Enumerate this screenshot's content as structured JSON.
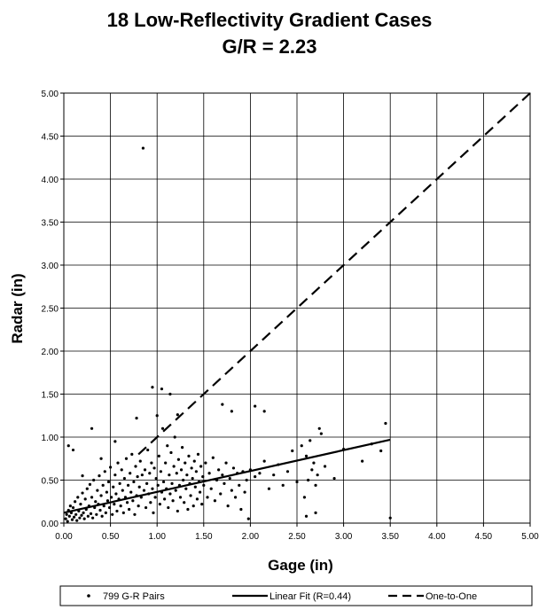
{
  "chart_data": {
    "type": "scatter",
    "title": "18 Low-Reflectivity Gradient Cases",
    "subtitle": "G/R = 2.23",
    "xlabel": "Gage (in)",
    "ylabel": "Radar (in)",
    "xlim": [
      0,
      5
    ],
    "ylim": [
      0,
      5
    ],
    "xticks": [
      "0.00",
      "0.50",
      "1.00",
      "1.50",
      "2.00",
      "2.50",
      "3.00",
      "3.50",
      "4.00",
      "4.50",
      "5.00"
    ],
    "yticks": [
      "0.00",
      "0.50",
      "1.00",
      "1.50",
      "2.00",
      "2.50",
      "3.00",
      "3.50",
      "4.00",
      "4.50",
      "5.00"
    ],
    "grid": true,
    "legend_position": "bottom",
    "series": [
      {
        "name": "799 G-R Pairs",
        "kind": "scatter",
        "color": "#000000",
        "points": [
          [
            0.02,
            0.05
          ],
          [
            0.03,
            0.1
          ],
          [
            0.04,
            0.02
          ],
          [
            0.05,
            0.15
          ],
          [
            0.06,
            0.08
          ],
          [
            0.07,
            0.2
          ],
          [
            0.08,
            0.12
          ],
          [
            0.09,
            0.04
          ],
          [
            0.1,
            0.18
          ],
          [
            0.11,
            0.07
          ],
          [
            0.12,
            0.25
          ],
          [
            0.13,
            0.1
          ],
          [
            0.14,
            0.03
          ],
          [
            0.15,
            0.3
          ],
          [
            0.16,
            0.14
          ],
          [
            0.17,
            0.06
          ],
          [
            0.18,
            0.22
          ],
          [
            0.19,
            0.09
          ],
          [
            0.2,
            0.35
          ],
          [
            0.21,
            0.12
          ],
          [
            0.22,
            0.05
          ],
          [
            0.23,
            0.28
          ],
          [
            0.24,
            0.16
          ],
          [
            0.25,
            0.4
          ],
          [
            0.26,
            0.08
          ],
          [
            0.27,
            0.2
          ],
          [
            0.28,
            0.45
          ],
          [
            0.29,
            0.11
          ],
          [
            0.3,
            0.3
          ],
          [
            0.31,
            0.06
          ],
          [
            0.32,
            0.5
          ],
          [
            0.33,
            0.18
          ],
          [
            0.34,
            0.25
          ],
          [
            0.35,
            0.1
          ],
          [
            0.36,
            0.38
          ],
          [
            0.37,
            0.22
          ],
          [
            0.38,
            0.55
          ],
          [
            0.39,
            0.15
          ],
          [
            0.4,
            0.32
          ],
          [
            0.41,
            0.08
          ],
          [
            0.42,
            0.44
          ],
          [
            0.43,
            0.2
          ],
          [
            0.44,
            0.6
          ],
          [
            0.45,
            0.12
          ],
          [
            0.46,
            0.36
          ],
          [
            0.47,
            0.26
          ],
          [
            0.48,
            0.48
          ],
          [
            0.49,
            0.18
          ],
          [
            0.5,
            0.65
          ],
          [
            0.51,
            0.3
          ],
          [
            0.52,
            0.1
          ],
          [
            0.53,
            0.42
          ],
          [
            0.54,
            0.22
          ],
          [
            0.55,
            0.56
          ],
          [
            0.56,
            0.34
          ],
          [
            0.57,
            0.14
          ],
          [
            0.58,
            0.7
          ],
          [
            0.59,
            0.28
          ],
          [
            0.6,
            0.46
          ],
          [
            0.61,
            0.2
          ],
          [
            0.62,
            0.62
          ],
          [
            0.63,
            0.38
          ],
          [
            0.64,
            0.12
          ],
          [
            0.65,
            0.52
          ],
          [
            0.66,
            0.3
          ],
          [
            0.67,
            0.75
          ],
          [
            0.68,
            0.24
          ],
          [
            0.69,
            0.44
          ],
          [
            0.7,
            0.16
          ],
          [
            0.71,
            0.58
          ],
          [
            0.72,
            0.36
          ],
          [
            0.73,
            0.8
          ],
          [
            0.74,
            0.26
          ],
          [
            0.75,
            0.48
          ],
          [
            0.76,
            0.1
          ],
          [
            0.77,
            0.66
          ],
          [
            0.78,
            0.32
          ],
          [
            0.79,
            0.54
          ],
          [
            0.8,
            0.2
          ],
          [
            0.81,
            0.42
          ],
          [
            0.82,
            0.72
          ],
          [
            0.83,
            0.3
          ],
          [
            0.84,
            0.56
          ],
          [
            0.85,
            4.36
          ],
          [
            0.86,
            0.38
          ],
          [
            0.87,
            0.62
          ],
          [
            0.88,
            0.18
          ],
          [
            0.89,
            0.46
          ],
          [
            0.9,
            0.85
          ],
          [
            0.91,
            0.34
          ],
          [
            0.92,
            0.58
          ],
          [
            0.93,
            0.24
          ],
          [
            0.94,
            0.7
          ],
          [
            0.95,
            0.4
          ],
          [
            0.96,
            0.12
          ],
          [
            0.97,
            0.64
          ],
          [
            0.98,
            0.3
          ],
          [
            0.99,
            0.52
          ],
          [
            1.0,
            1.25
          ],
          [
            1.01,
            0.44
          ],
          [
            1.02,
            0.78
          ],
          [
            1.03,
            0.22
          ],
          [
            1.04,
            0.6
          ],
          [
            1.05,
            0.36
          ],
          [
            1.06,
            1.1
          ],
          [
            1.07,
            0.48
          ],
          [
            1.08,
            0.28
          ],
          [
            1.09,
            0.7
          ],
          [
            1.1,
            0.4
          ],
          [
            1.11,
            0.9
          ],
          [
            1.12,
            0.18
          ],
          [
            1.13,
            0.56
          ],
          [
            1.14,
            0.34
          ],
          [
            1.15,
            0.82
          ],
          [
            1.16,
            0.46
          ],
          [
            1.17,
            0.26
          ],
          [
            1.18,
            0.66
          ],
          [
            1.19,
            1.0
          ],
          [
            1.2,
            0.38
          ],
          [
            1.21,
            0.58
          ],
          [
            1.22,
            0.14
          ],
          [
            1.23,
            0.74
          ],
          [
            1.24,
            0.44
          ],
          [
            1.25,
            0.3
          ],
          [
            1.26,
            0.62
          ],
          [
            1.27,
            0.88
          ],
          [
            1.28,
            0.5
          ],
          [
            1.29,
            0.24
          ],
          [
            1.3,
            0.7
          ],
          [
            1.31,
            0.4
          ],
          [
            1.32,
            0.56
          ],
          [
            1.33,
            0.16
          ],
          [
            1.34,
            0.78
          ],
          [
            1.35,
            0.46
          ],
          [
            1.36,
            0.32
          ],
          [
            1.37,
            0.64
          ],
          [
            1.38,
            0.52
          ],
          [
            1.39,
            0.2
          ],
          [
            1.4,
            0.72
          ],
          [
            1.41,
            0.42
          ],
          [
            1.42,
            0.6
          ],
          [
            1.43,
            0.28
          ],
          [
            1.44,
            0.8
          ],
          [
            1.45,
            0.48
          ],
          [
            1.46,
            0.36
          ],
          [
            1.47,
            0.66
          ],
          [
            1.48,
            0.22
          ],
          [
            1.49,
            0.54
          ],
          [
            1.5,
            0.44
          ],
          [
            1.52,
            0.7
          ],
          [
            1.54,
            0.3
          ],
          [
            1.56,
            0.58
          ],
          [
            1.58,
            0.4
          ],
          [
            1.6,
            0.76
          ],
          [
            1.62,
            0.26
          ],
          [
            1.64,
            0.5
          ],
          [
            1.66,
            0.62
          ],
          [
            1.68,
            0.34
          ],
          [
            1.7,
            0.56
          ],
          [
            1.72,
            0.46
          ],
          [
            1.74,
            0.7
          ],
          [
            1.76,
            0.2
          ],
          [
            1.78,
            0.52
          ],
          [
            1.8,
            0.38
          ],
          [
            1.82,
            0.64
          ],
          [
            1.84,
            0.3
          ],
          [
            1.86,
            0.58
          ],
          [
            1.88,
            0.44
          ],
          [
            1.9,
            0.16
          ],
          [
            1.92,
            0.6
          ],
          [
            1.94,
            0.36
          ],
          [
            1.96,
            0.5
          ],
          [
            1.98,
            0.05
          ],
          [
            2.0,
            0.62
          ],
          [
            2.05,
            0.54
          ],
          [
            2.1,
            0.58
          ],
          [
            2.15,
            0.72
          ],
          [
            2.2,
            0.4
          ],
          [
            2.25,
            0.56
          ],
          [
            2.3,
            0.68
          ],
          [
            2.35,
            0.44
          ],
          [
            2.4,
            0.6
          ],
          [
            2.45,
            0.84
          ],
          [
            2.5,
            0.48
          ],
          [
            2.55,
            0.9
          ],
          [
            2.58,
            0.3
          ],
          [
            2.6,
            0.78
          ],
          [
            2.62,
            0.5
          ],
          [
            2.64,
            0.96
          ],
          [
            2.66,
            0.62
          ],
          [
            2.68,
            0.7
          ],
          [
            2.7,
            0.44
          ],
          [
            2.72,
            0.56
          ],
          [
            2.76,
            1.04
          ],
          [
            2.8,
            0.66
          ],
          [
            2.9,
            0.52
          ],
          [
            3.0,
            0.86
          ],
          [
            3.2,
            0.72
          ],
          [
            3.3,
            0.92
          ],
          [
            3.4,
            0.84
          ],
          [
            3.45,
            1.16
          ],
          [
            3.5,
            0.06
          ],
          [
            0.05,
            0.9
          ],
          [
            0.1,
            0.85
          ],
          [
            0.3,
            1.1
          ],
          [
            0.78,
            1.22
          ],
          [
            0.95,
            1.58
          ],
          [
            1.05,
            1.56
          ],
          [
            1.14,
            1.5
          ],
          [
            1.22,
            1.26
          ],
          [
            1.7,
            1.38
          ],
          [
            1.8,
            1.3
          ],
          [
            2.05,
            1.36
          ],
          [
            2.15,
            1.3
          ],
          [
            2.74,
            1.1
          ],
          [
            2.6,
            0.08
          ],
          [
            2.7,
            0.12
          ],
          [
            0.2,
            0.55
          ],
          [
            0.4,
            0.75
          ],
          [
            0.55,
            0.95
          ]
        ]
      },
      {
        "name": "Linear Fit (R=0.44)",
        "kind": "line",
        "style": "solid",
        "color": "#000000",
        "points": [
          [
            0,
            0.12
          ],
          [
            3.5,
            0.97
          ]
        ]
      },
      {
        "name": "One-to-One",
        "kind": "line",
        "style": "dashed",
        "color": "#000000",
        "points": [
          [
            0.8,
            0.8
          ],
          [
            5,
            5
          ]
        ]
      }
    ]
  }
}
